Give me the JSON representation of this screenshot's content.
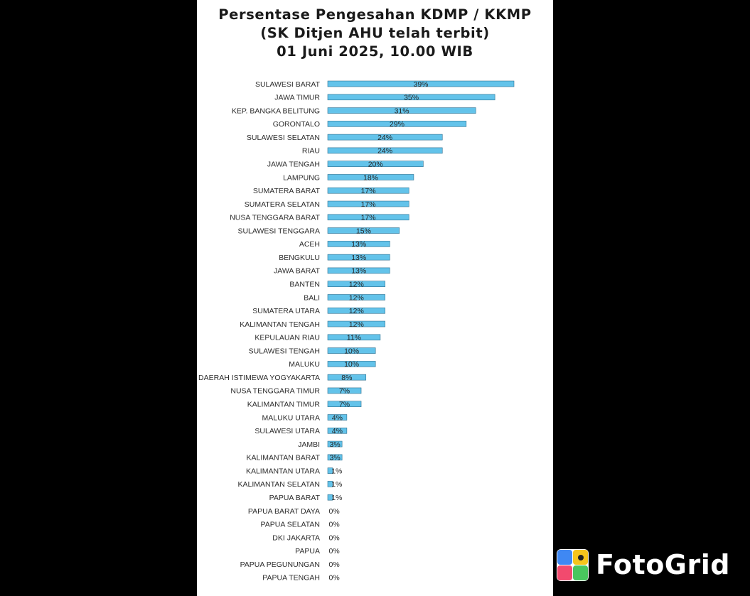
{
  "chart_data": {
    "type": "bar",
    "orientation": "horizontal",
    "title": [
      "Persentase Pengesahan KDMP / KKMP",
      "(SK Ditjen AHU telah terbit)",
      "01 Juni 2025, 10.00 WIB"
    ],
    "categories": [
      "SULAWESI BARAT",
      "JAWA TIMUR",
      "KEP. BANGKA BELITUNG",
      "GORONTALO",
      "SULAWESI SELATAN",
      "RIAU",
      "JAWA TENGAH",
      "LAMPUNG",
      "SUMATERA BARAT",
      "SUMATERA SELATAN",
      "NUSA TENGGARA BARAT",
      "SULAWESI TENGGARA",
      "ACEH",
      "BENGKULU",
      "JAWA BARAT",
      "BANTEN",
      "BALI",
      "SUMATERA UTARA",
      "KALIMANTAN TENGAH",
      "KEPULAUAN RIAU",
      "SULAWESI TENGAH",
      "MALUKU",
      "DAERAH ISTIMEWA YOGYAKARTA",
      "NUSA TENGGARA TIMUR",
      "KALIMANTAN TIMUR",
      "MALUKU UTARA",
      "SULAWESI UTARA",
      "JAMBI",
      "KALIMANTAN BARAT",
      "KALIMANTAN UTARA",
      "KALIMANTAN SELATAN",
      "PAPUA BARAT",
      "PAPUA BARAT DAYA",
      "PAPUA SELATAN",
      "DKI JAKARTA",
      "PAPUA",
      "PAPUA PEGUNUNGAN",
      "PAPUA TENGAH"
    ],
    "values": [
      39,
      35,
      31,
      29,
      24,
      24,
      20,
      18,
      17,
      17,
      17,
      15,
      13,
      13,
      13,
      12,
      12,
      12,
      12,
      11,
      10,
      10,
      8,
      7,
      7,
      4,
      4,
      3,
      3,
      1,
      1,
      1,
      0,
      0,
      0,
      0,
      0,
      0
    ],
    "value_labels": [
      "39%",
      "35%",
      "31%",
      "29%",
      "24%",
      "24%",
      "20%",
      "18%",
      "17%",
      "17%",
      "17%",
      "15%",
      "13%",
      "13%",
      "13%",
      "12%",
      "12%",
      "12%",
      "12%",
      "11%",
      "10%",
      "10%",
      "8%",
      "7%",
      "7%",
      "4%",
      "4%",
      "3%",
      "3%",
      "1%",
      "1%",
      "1%",
      "0%",
      "0%",
      "0%",
      "0%",
      "0%",
      "0%"
    ],
    "unit": "%",
    "xlim": [
      0,
      39
    ],
    "grid": false,
    "legend": "none",
    "bar_color": "#63c3ea"
  },
  "watermark": {
    "text": "FotoGrid"
  },
  "colors": {
    "background": "#000000",
    "panel": "#ffffff",
    "bar": "#63c3ea"
  }
}
